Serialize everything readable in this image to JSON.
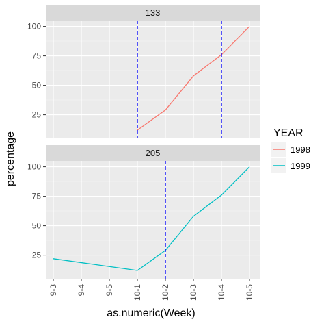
{
  "chart_data": {
    "type": "line",
    "xlabel": "as.numeric(Week)",
    "ylabel": "percentage",
    "categories": [
      "9-3",
      "9-4",
      "9-5",
      "10-1",
      "10-2",
      "10-3",
      "10-4",
      "10-5"
    ],
    "ylim": [
      5,
      105
    ],
    "yticks": [
      25,
      50,
      75,
      100
    ],
    "grid": true,
    "legend": {
      "title": "YEAR",
      "position": "right",
      "entries": [
        {
          "label": "1998",
          "color": "#F8766D"
        },
        {
          "label": "1999",
          "color": "#00BFC4"
        }
      ]
    },
    "panels": [
      {
        "strip": "133",
        "series": [
          {
            "name": "1998",
            "color": "#F8766D",
            "points": [
              [
                "10-1",
                12
              ],
              [
                "10-2",
                29
              ],
              [
                "10-3",
                58
              ],
              [
                "10-4",
                76
              ],
              [
                "10-5",
                100
              ]
            ]
          }
        ],
        "vlines": [
          "10-1",
          "10-4"
        ]
      },
      {
        "strip": "205",
        "series": [
          {
            "name": "1999",
            "color": "#00BFC4",
            "points": [
              [
                "9-3",
                22
              ],
              [
                "10-1",
                12
              ],
              [
                "10-2",
                29
              ],
              [
                "10-3",
                58
              ],
              [
                "10-4",
                76
              ],
              [
                "10-5",
                100
              ]
            ]
          }
        ],
        "vlines": [
          "10-2"
        ]
      }
    ],
    "vline_color": "#0000FF"
  }
}
